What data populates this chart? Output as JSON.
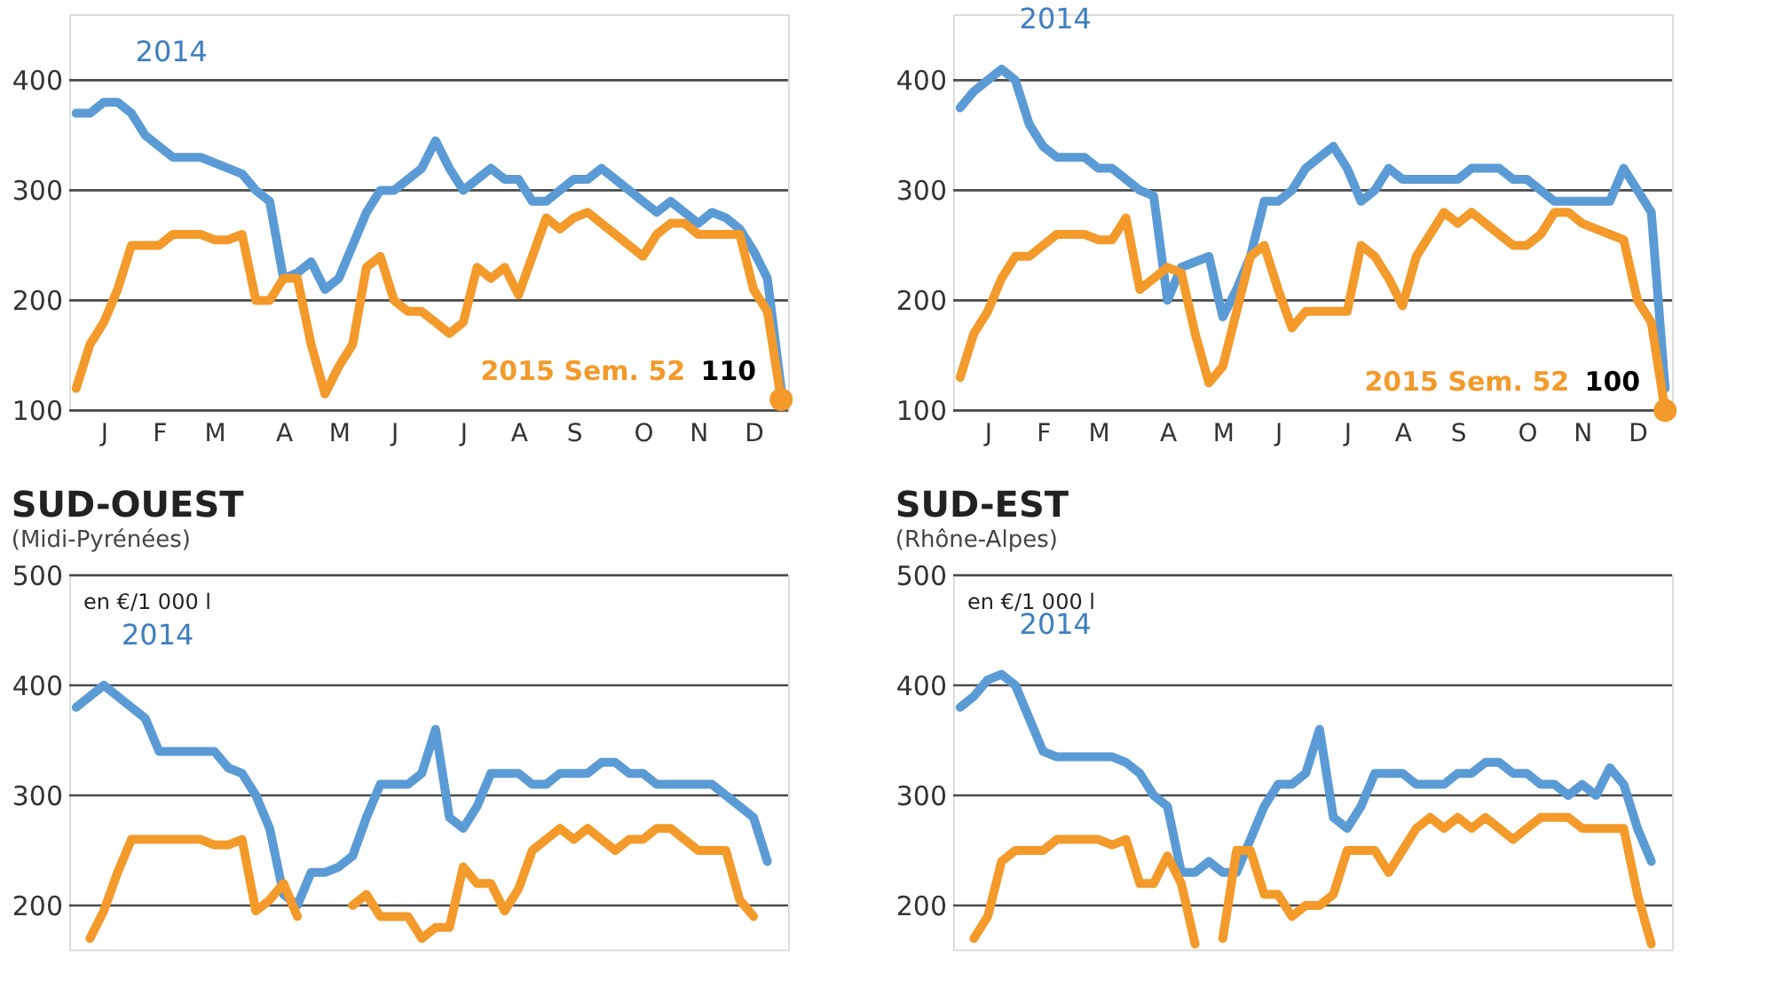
{
  "chart_data": [
    {
      "type": "line",
      "categories": [
        null,
        null,
        "J",
        null,
        null,
        null,
        "F",
        null,
        null,
        null,
        "M",
        null,
        null,
        null,
        null,
        "A",
        null,
        null,
        null,
        "M",
        null,
        null,
        null,
        "J",
        null,
        null,
        null,
        null,
        "J",
        null,
        null,
        null,
        "A",
        null,
        null,
        null,
        "S",
        null,
        null,
        null,
        null,
        "O",
        null,
        null,
        null,
        "N",
        null,
        null,
        null,
        "D",
        null,
        null
      ],
      "ylim": [
        100,
        460
      ],
      "yticks": [
        100,
        200,
        300,
        400
      ],
      "grid": "y",
      "series": [
        {
          "name": "2014",
          "color": "#5b9bd5",
          "values": [
            370,
            370,
            380,
            380,
            370,
            350,
            340,
            330,
            330,
            330,
            325,
            320,
            315,
            300,
            290,
            220,
            225,
            235,
            210,
            220,
            250,
            280,
            300,
            300,
            310,
            320,
            345,
            320,
            300,
            310,
            320,
            310,
            310,
            290,
            290,
            300,
            310,
            310,
            320,
            310,
            300,
            290,
            280,
            290,
            280,
            270,
            280,
            275,
            265,
            245,
            220,
            120
          ]
        },
        {
          "name": "2015 Sem. 52",
          "color": "#f39a2b",
          "values": [
            120,
            160,
            180,
            210,
            250,
            250,
            250,
            260,
            260,
            260,
            255,
            255,
            260,
            200,
            200,
            220,
            220,
            160,
            115,
            140,
            160,
            230,
            240,
            200,
            190,
            190,
            180,
            170,
            180,
            230,
            220,
            230,
            205,
            240,
            275,
            265,
            275,
            280,
            270,
            260,
            250,
            240,
            260,
            270,
            270,
            260,
            260,
            260,
            260,
            210,
            190,
            110
          ],
          "value_labels": [
            null,
            null,
            null,
            null,
            null,
            null,
            null,
            null,
            null,
            null,
            null,
            null,
            null,
            null,
            null,
            null,
            null,
            null,
            null,
            null,
            null,
            null,
            null,
            null,
            null,
            null,
            null,
            null,
            null,
            null,
            null,
            null,
            null,
            null,
            null,
            null,
            null,
            null,
            null,
            null,
            null,
            null,
            null,
            null,
            null,
            null,
            null,
            null,
            null,
            null,
            null,
            "110"
          ]
        }
      ]
    },
    {
      "type": "line",
      "categories": [
        null,
        null,
        "J",
        null,
        null,
        null,
        "F",
        null,
        null,
        null,
        "M",
        null,
        null,
        null,
        null,
        "A",
        null,
        null,
        null,
        "M",
        null,
        null,
        null,
        "J",
        null,
        null,
        null,
        null,
        "J",
        null,
        null,
        null,
        "A",
        null,
        null,
        null,
        "S",
        null,
        null,
        null,
        null,
        "O",
        null,
        null,
        null,
        "N",
        null,
        null,
        null,
        "D",
        null,
        null
      ],
      "ylim": [
        100,
        460
      ],
      "yticks": [
        100,
        200,
        300,
        400
      ],
      "grid": "y",
      "series": [
        {
          "name": "2014",
          "color": "#5b9bd5",
          "values": [
            375,
            390,
            400,
            410,
            400,
            360,
            340,
            330,
            330,
            330,
            320,
            320,
            310,
            300,
            295,
            200,
            230,
            235,
            240,
            185,
            210,
            240,
            290,
            290,
            300,
            320,
            330,
            340,
            320,
            290,
            300,
            320,
            310,
            310,
            310,
            310,
            310,
            320,
            320,
            320,
            310,
            310,
            300,
            290,
            290,
            290,
            290,
            290,
            320,
            300,
            280,
            120
          ]
        },
        {
          "name": "2015 Sem. 52",
          "color": "#f39a2b",
          "values": [
            130,
            170,
            190,
            220,
            240,
            240,
            250,
            260,
            260,
            260,
            255,
            255,
            275,
            210,
            220,
            230,
            225,
            170,
            125,
            140,
            190,
            240,
            250,
            210,
            175,
            190,
            190,
            190,
            190,
            250,
            240,
            220,
            195,
            240,
            260,
            280,
            270,
            280,
            270,
            260,
            250,
            250,
            260,
            280,
            280,
            270,
            265,
            260,
            255,
            200,
            180,
            100
          ],
          "value_labels": [
            null,
            null,
            null,
            null,
            null,
            null,
            null,
            null,
            null,
            null,
            null,
            null,
            null,
            null,
            null,
            null,
            null,
            null,
            null,
            null,
            null,
            null,
            null,
            null,
            null,
            null,
            null,
            null,
            null,
            null,
            null,
            null,
            null,
            null,
            null,
            null,
            null,
            null,
            null,
            null,
            null,
            null,
            null,
            null,
            null,
            null,
            null,
            null,
            null,
            null,
            null,
            "100"
          ]
        }
      ]
    },
    {
      "type": "line",
      "title": "SUD-OUEST",
      "subtitle": "(Midi-Pyrénées)",
      "ylabel": "en €/1 000 l",
      "categories": [
        null,
        null,
        null,
        null,
        null,
        null,
        null,
        null,
        null,
        null,
        null,
        null,
        null,
        null,
        null,
        null,
        null,
        null,
        null,
        null,
        null,
        null,
        null,
        null,
        null,
        null,
        null,
        null,
        null,
        null,
        null,
        null,
        null,
        null,
        null,
        null,
        null,
        null,
        null,
        null,
        null,
        null,
        null,
        null,
        null,
        null,
        null,
        null,
        null,
        null,
        null,
        null
      ],
      "ylim": [
        160,
        500
      ],
      "yticks": [
        200,
        300,
        400,
        500
      ],
      "tick_labels": "y",
      "grid": "y",
      "series": [
        {
          "name": "2014",
          "color": "#5b9bd5",
          "values": [
            380,
            390,
            400,
            390,
            380,
            370,
            340,
            340,
            340,
            340,
            340,
            325,
            320,
            300,
            270,
            210,
            200,
            230,
            230,
            235,
            245,
            280,
            310,
            310,
            310,
            320,
            360,
            280,
            270,
            290,
            320,
            320,
            320,
            310,
            310,
            320,
            320,
            320,
            330,
            330,
            320,
            320,
            310,
            310,
            310,
            310,
            310,
            300,
            290,
            280,
            240,
            null
          ]
        },
        {
          "color": "#f39a2b",
          "values": [
            null,
            170,
            195,
            230,
            260,
            260,
            260,
            260,
            260,
            260,
            255,
            255,
            260,
            195,
            205,
            220,
            190,
            null,
            null,
            null,
            200,
            210,
            190,
            190,
            190,
            170,
            180,
            180,
            235,
            220,
            220,
            195,
            215,
            250,
            260,
            270,
            260,
            270,
            260,
            250,
            260,
            260,
            270,
            270,
            260,
            250,
            250,
            250,
            205,
            190,
            null,
            null
          ]
        }
      ]
    },
    {
      "type": "line",
      "title": "SUD-EST",
      "subtitle": "(Rhône-Alpes)",
      "ylabel": "en €/1 000 l",
      "categories": [
        null,
        null,
        null,
        null,
        null,
        null,
        null,
        null,
        null,
        null,
        null,
        null,
        null,
        null,
        null,
        null,
        null,
        null,
        null,
        null,
        null,
        null,
        null,
        null,
        null,
        null,
        null,
        null,
        null,
        null,
        null,
        null,
        null,
        null,
        null,
        null,
        null,
        null,
        null,
        null,
        null,
        null,
        null,
        null,
        null,
        null,
        null,
        null,
        null,
        null,
        null,
        null
      ],
      "ylim": [
        160,
        500
      ],
      "yticks": [
        200,
        300,
        400,
        500
      ],
      "tick_labels": "y",
      "grid": "y",
      "series": [
        {
          "name": "2014",
          "color": "#5b9bd5",
          "values": [
            380,
            390,
            405,
            410,
            400,
            370,
            340,
            335,
            335,
            335,
            335,
            335,
            330,
            320,
            300,
            290,
            230,
            230,
            240,
            230,
            230,
            260,
            290,
            310,
            310,
            320,
            360,
            280,
            270,
            290,
            320,
            320,
            320,
            310,
            310,
            310,
            320,
            320,
            330,
            330,
            320,
            320,
            310,
            310,
            300,
            310,
            300,
            325,
            310,
            270,
            240,
            null
          ]
        },
        {
          "color": "#f39a2b",
          "values": [
            null,
            170,
            190,
            240,
            250,
            250,
            250,
            260,
            260,
            260,
            260,
            255,
            260,
            220,
            220,
            245,
            220,
            165,
            null,
            170,
            250,
            250,
            210,
            210,
            190,
            200,
            200,
            210,
            250,
            250,
            250,
            230,
            250,
            270,
            280,
            270,
            280,
            270,
            280,
            270,
            260,
            270,
            280,
            280,
            280,
            270,
            270,
            270,
            270,
            210,
            165,
            null
          ]
        }
      ]
    }
  ]
}
